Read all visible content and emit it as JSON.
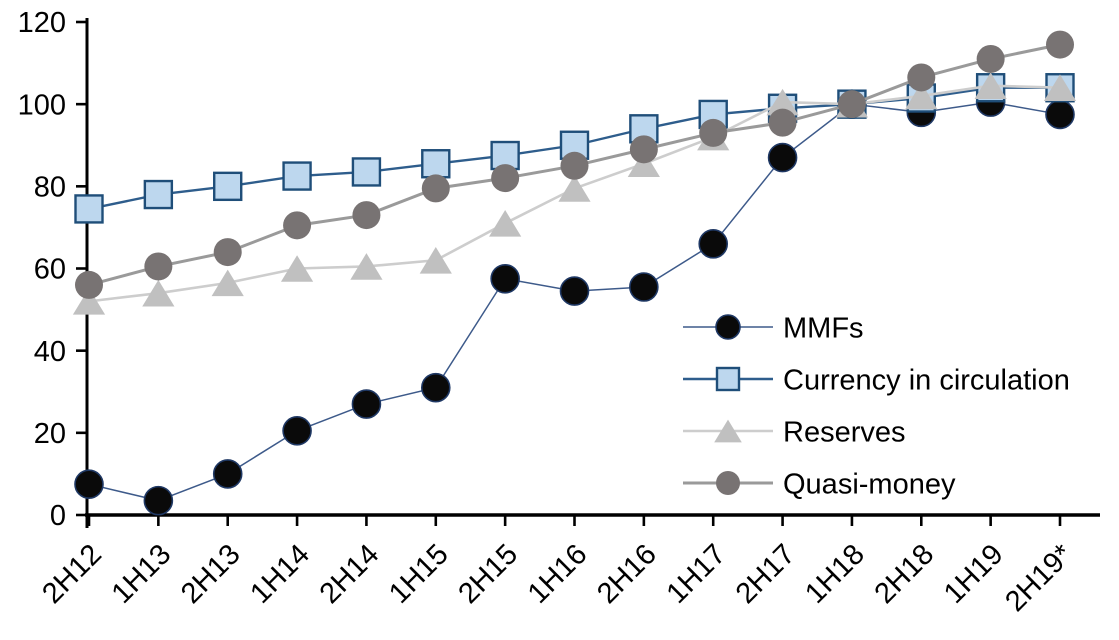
{
  "chart_data": {
    "type": "line",
    "title": "",
    "xlabel": "",
    "ylabel": "",
    "grid": false,
    "legend_position": "inside-right",
    "categories": [
      "2H12",
      "1H13",
      "2H13",
      "1H14",
      "2H14",
      "1H15",
      "2H15",
      "1H16",
      "2H16",
      "1H17",
      "2H17",
      "1H18",
      "2H18",
      "1H19",
      "2H19*"
    ],
    "y_axis": {
      "min": 0,
      "max": 120,
      "step": 20,
      "tick_labels": [
        "0",
        "20",
        "40",
        "60",
        "80",
        "100",
        "120"
      ]
    },
    "series": [
      {
        "name": "MMFs",
        "marker": "circle",
        "marker_color": "#0a0a0a",
        "marker_stroke": "#1f3864",
        "line_color": "#3d5a8a",
        "line_width": 1.5,
        "values": [
          7.5,
          3.5,
          10,
          20.5,
          27,
          31,
          57.5,
          54.5,
          55.5,
          66,
          87,
          100,
          98,
          100.5,
          97.5
        ]
      },
      {
        "name": "Currency in circulation",
        "marker": "square",
        "marker_color": "#bdd7ee",
        "marker_stroke": "#1f4e79",
        "line_color": "#2e5d8c",
        "line_width": 2.4,
        "values": [
          74.5,
          78,
          80,
          82.5,
          83.5,
          85.5,
          87.5,
          90,
          94,
          97.5,
          99,
          100,
          101.5,
          104,
          104
        ]
      },
      {
        "name": "Reserves",
        "marker": "triangle",
        "marker_color": "#c0c0c0",
        "marker_stroke": "none",
        "line_color": "#cdcdcd",
        "line_width": 2.6,
        "values": [
          52,
          54,
          56.5,
          60,
          60.5,
          62,
          71,
          79.5,
          85.5,
          92,
          100.5,
          100,
          102,
          104.5,
          104
        ]
      },
      {
        "name": "Quasi-money",
        "marker": "circle",
        "marker_color": "#787373",
        "marker_stroke": "none",
        "line_color": "#9a9a9a",
        "line_width": 3,
        "values": [
          56,
          60.5,
          64,
          70.5,
          73,
          79.5,
          82,
          85,
          89,
          93,
          95.5,
          100,
          106.5,
          111,
          114.5
        ]
      }
    ],
    "axis_color": "#000000"
  }
}
